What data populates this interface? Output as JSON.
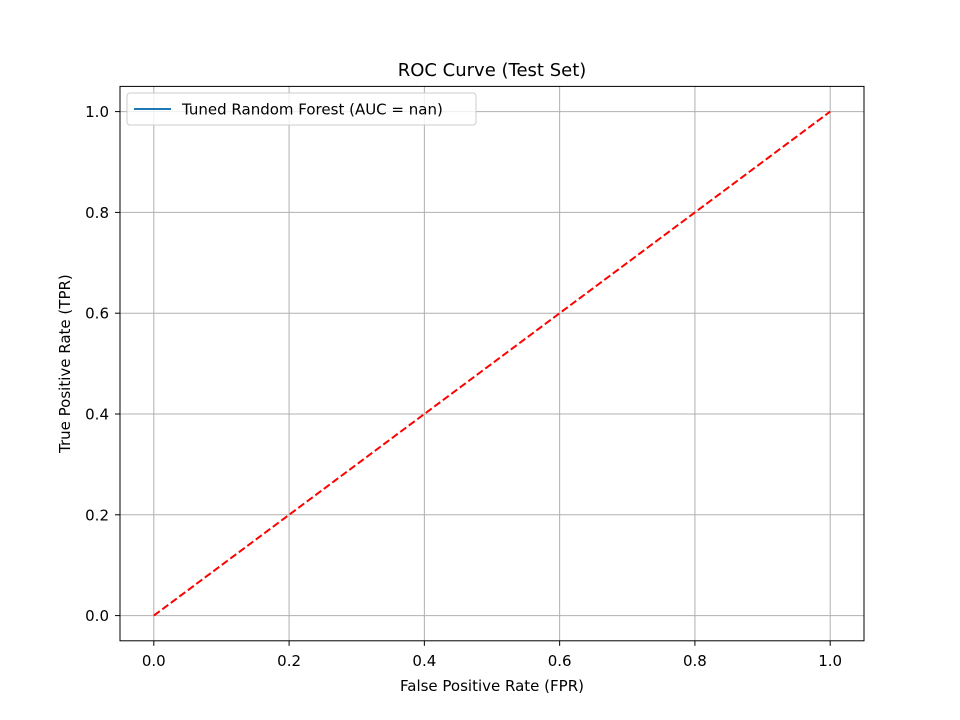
{
  "chart_data": {
    "type": "line",
    "title": "ROC Curve (Test Set)",
    "xlabel": "False Positive Rate (FPR)",
    "ylabel": "True Positive Rate (TPR)",
    "xlim": [
      -0.05,
      1.05
    ],
    "ylim": [
      -0.05,
      1.05
    ],
    "xticks": [
      0.0,
      0.2,
      0.4,
      0.6,
      0.8,
      1.0
    ],
    "yticks": [
      0.0,
      0.2,
      0.4,
      0.6,
      0.8,
      1.0
    ],
    "grid": true,
    "legend_position": "upper-left",
    "series": [
      {
        "name": "Tuned Random Forest (AUC = nan)",
        "color": "#1f77b4",
        "style": "solid",
        "x": [],
        "y": []
      },
      {
        "color": "#ff0000",
        "style": "dashed",
        "x": [
          0,
          1
        ],
        "y": [
          0,
          1
        ]
      }
    ]
  }
}
